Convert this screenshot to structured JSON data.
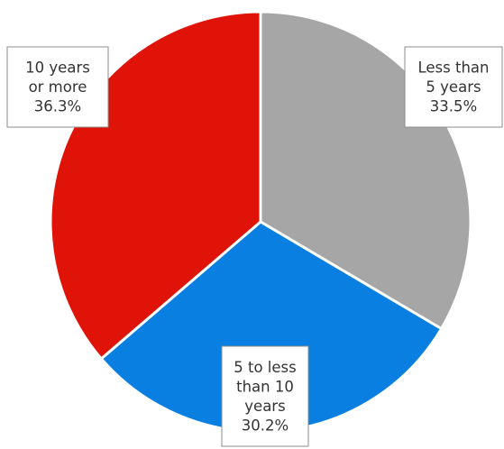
{
  "chart_data": {
    "type": "pie",
    "title": "",
    "start_angle_deg": 0,
    "direction": "clockwise",
    "slices": [
      {
        "label_lines": [
          "Less than",
          "5 years",
          "33.5%"
        ],
        "category": "Less than 5 years",
        "value": 33.5,
        "value_label": "33.5%",
        "color": "#a6a6a6"
      },
      {
        "label_lines": [
          "5 to less",
          "than 10",
          "years",
          "30.2%"
        ],
        "category": "5 to less than 10 years",
        "value": 30.2,
        "value_label": "30.2%",
        "color": "#0a7fe2"
      },
      {
        "label_lines": [
          "10 years",
          "or more",
          "36.3%"
        ],
        "category": "10 years or more",
        "value": 36.3,
        "value_label": "36.3%",
        "color": "#e01308"
      }
    ]
  }
}
